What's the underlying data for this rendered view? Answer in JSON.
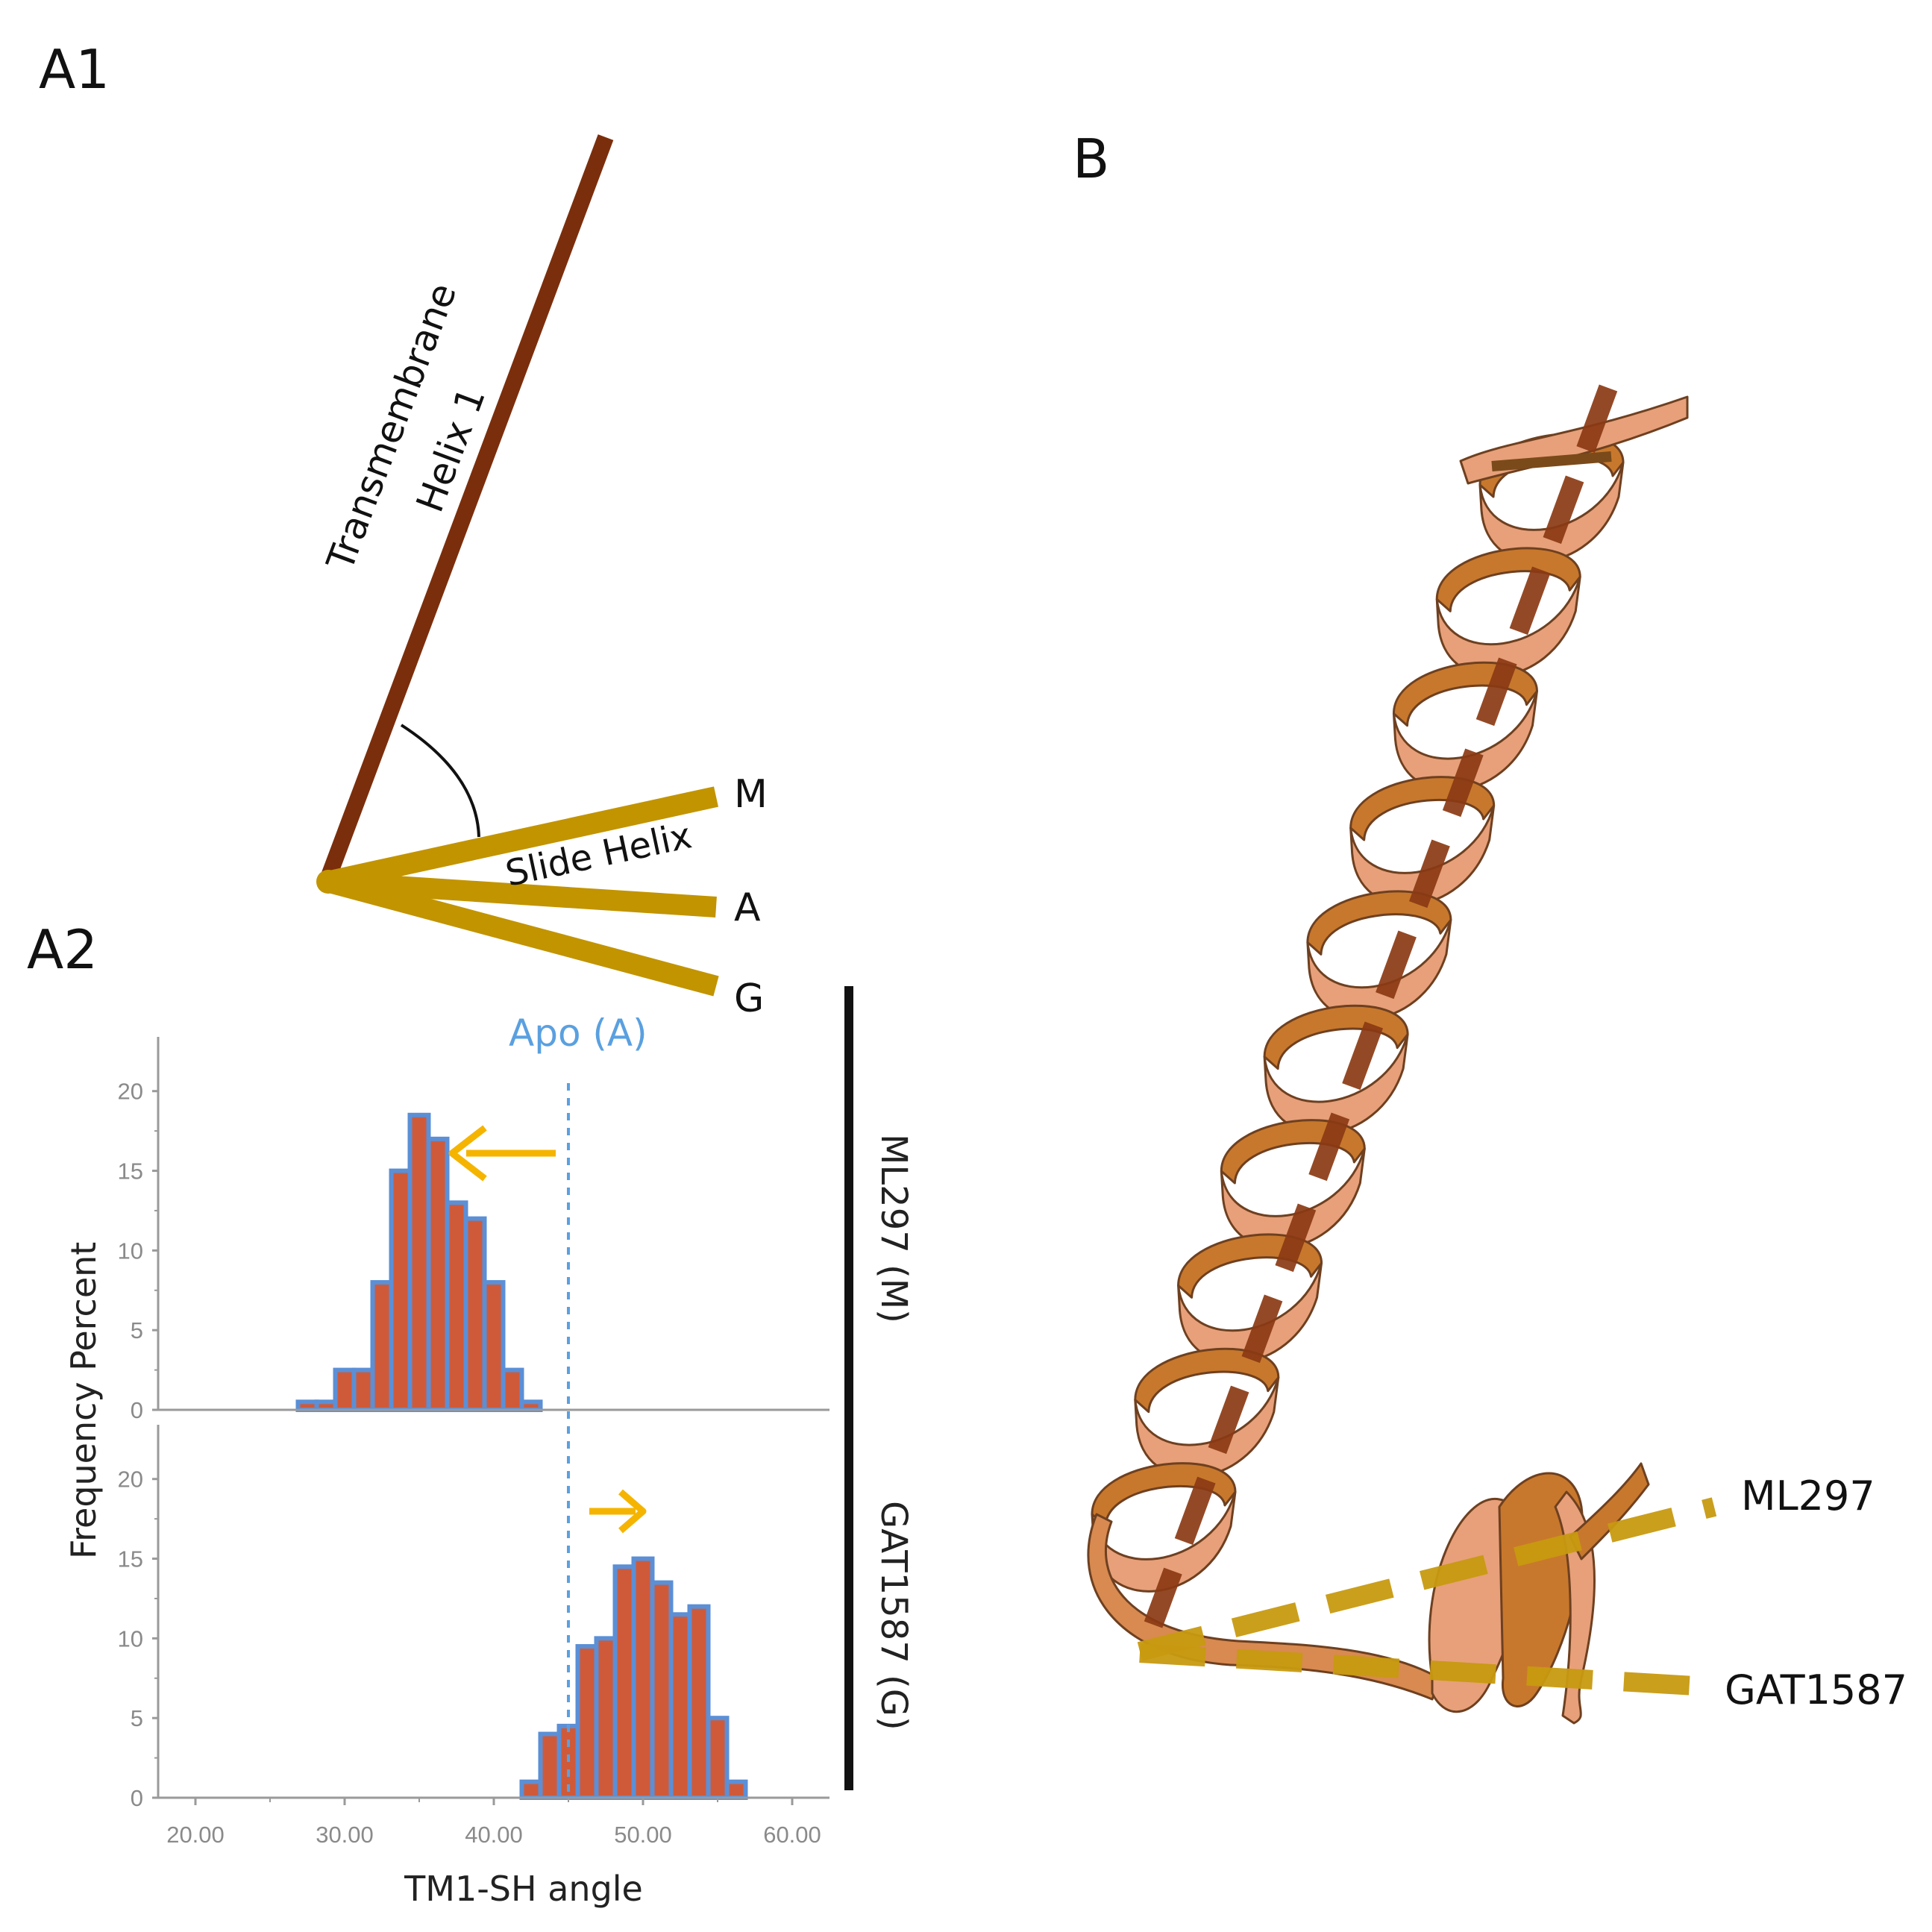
{
  "panels": {
    "a1": {
      "label": "A1",
      "tm_label_line1": "Transmembrane",
      "tm_label_line2": "Helix 1",
      "slide_label": "Slide Helix",
      "states": [
        "M",
        "A",
        "G"
      ]
    },
    "a2": {
      "label": "A2",
      "reference_label": "Apo (A)",
      "right_labels": [
        "ML297 (M)",
        "GAT1587 (G)"
      ]
    },
    "b": {
      "label": "B",
      "line_labels": [
        "ML297",
        "GAT1587"
      ]
    }
  },
  "colors": {
    "tm_helix": "#7b2e0c",
    "slide_helix": "#c29400",
    "arc": "#111111",
    "bar_fill": "#cf5a3a",
    "bar_outline": "#5b8fd6",
    "reference_line": "#5aa0e0",
    "arrow": "#f5b400",
    "ribbon_light": "#e7a07a",
    "ribbon_dark": "#c8782c",
    "axis_dash_brown": "#8b3a14",
    "axis_dash_gold": "#c89a10"
  },
  "chart_data": [
    {
      "type": "bar",
      "panel": "ML297 (M)",
      "x_centers": [
        27.5,
        28.75,
        30.0,
        31.25,
        32.5,
        33.75,
        35.0,
        36.25,
        37.5,
        38.75,
        40.0,
        41.25,
        42.5
      ],
      "values": [
        0.5,
        0.5,
        2.5,
        2.5,
        8.0,
        15.0,
        18.5,
        17.0,
        13.0,
        12.0,
        8.0,
        2.5,
        0.5
      ],
      "bin_width": 1.25,
      "xlim": [
        17.5,
        62.5
      ],
      "ylim": [
        0,
        22
      ],
      "yticks": [
        "0",
        "5",
        "10",
        "15",
        "20"
      ],
      "reference_x": 45,
      "arrow": "left"
    },
    {
      "type": "bar",
      "panel": "GAT1587 (G)",
      "x_centers": [
        42.5,
        43.75,
        45.0,
        46.25,
        47.5,
        48.75,
        50.0,
        51.25,
        52.5,
        53.75,
        55.0,
        56.25
      ],
      "values": [
        1.0,
        4.0,
        4.5,
        9.5,
        10.0,
        14.5,
        15.0,
        13.5,
        11.5,
        12.0,
        5.0,
        1.0
      ],
      "bin_width": 1.25,
      "xlim": [
        17.5,
        62.5
      ],
      "ylim": [
        0,
        22
      ],
      "yticks": [
        "0",
        "5",
        "10",
        "15",
        "20"
      ],
      "xticks": [
        "20.00",
        "30.00",
        "40.00",
        "50.00",
        "60.00"
      ],
      "xlabel": "TM1-SH angle",
      "ylabel": "Frequency Percent",
      "arrow": "right"
    }
  ]
}
